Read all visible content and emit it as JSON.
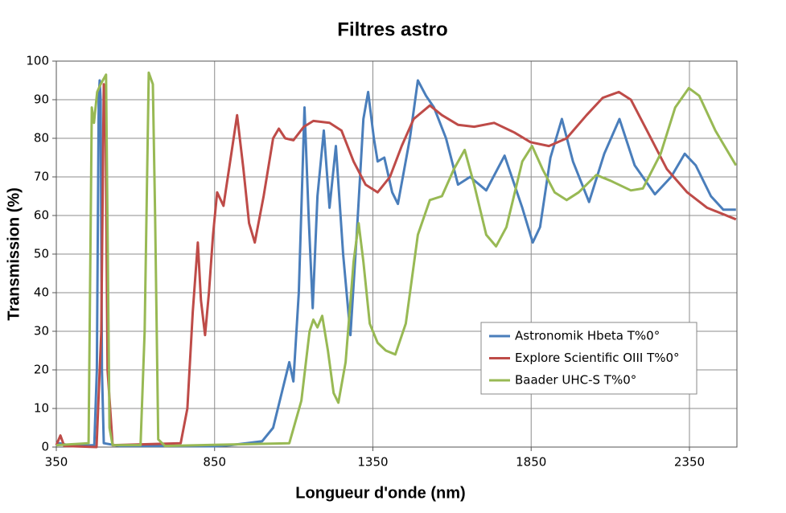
{
  "chart_data": {
    "type": "line",
    "title": "Filtres astro",
    "x_label": "Longueur d'onde (nm)",
    "y_label": "Transmission (%)",
    "xlim": [
      350,
      2500
    ],
    "ylim": [
      0,
      100
    ],
    "xticks": [
      350,
      850,
      1350,
      1850,
      2350
    ],
    "yticks": [
      0,
      10,
      20,
      30,
      40,
      50,
      60,
      70,
      80,
      90,
      100
    ],
    "grid": true,
    "legend": "lower right",
    "series": [
      {
        "name": "Astronomik Hbeta T%0°",
        "color": "#4a7ebb",
        "x": [
          350,
          360,
          400,
          470,
          478,
          484,
          487,
          490,
          494,
          500,
          550,
          700,
          850,
          900,
          950,
          1000,
          1035,
          1086,
          1099,
          1116,
          1134,
          1147,
          1160,
          1175,
          1195,
          1213,
          1233,
          1256,
          1279,
          1299,
          1320,
          1335,
          1353,
          1365,
          1386,
          1411,
          1429,
          1467,
          1492,
          1518,
          1543,
          1581,
          1619,
          1657,
          1708,
          1766,
          1822,
          1855,
          1878,
          1911,
          1947,
          1982,
          2033,
          2081,
          2129,
          2177,
          2241,
          2292,
          2335,
          2370,
          2418,
          2457,
          2497
        ],
        "values": [
          0.5,
          1,
          0.3,
          0.5,
          20,
          90,
          95,
          90,
          20,
          1,
          0.3,
          0.3,
          0.2,
          0.5,
          1,
          1.5,
          5,
          22,
          17,
          40,
          88,
          60,
          36,
          65,
          82,
          62,
          78,
          50,
          29,
          55,
          85,
          92,
          80,
          74,
          75,
          66,
          63,
          80,
          95,
          91,
          88,
          80,
          68,
          70,
          66.5,
          75.5,
          62,
          53,
          57,
          75,
          85,
          74,
          63.5,
          76,
          85,
          73,
          65.5,
          70,
          76,
          73,
          65,
          61.5,
          61.5
        ]
      },
      {
        "name": "Explore Scientific OIII T%0°",
        "color": "#be4b48",
        "x": [
          350,
          363,
          375,
          477,
          492,
          500,
          505,
          512,
          528,
          743,
          764,
          781,
          797,
          807,
          820,
          832,
          845,
          858,
          878,
          901,
          921,
          941,
          959,
          977,
          1005,
          1035,
          1053,
          1073,
          1099,
          1132,
          1162,
          1213,
          1251,
          1289,
          1327,
          1365,
          1404,
          1441,
          1479,
          1530,
          1568,
          1619,
          1670,
          1733,
          1797,
          1848,
          1906,
          1962,
          2025,
          2076,
          2127,
          2165,
          2216,
          2279,
          2343,
          2406,
          2497
        ],
        "values": [
          0.5,
          3,
          0.3,
          0,
          30,
          94,
          90,
          20,
          0.5,
          1,
          10,
          35,
          53,
          38,
          29,
          40,
          55,
          66,
          62.5,
          75,
          86,
          72,
          58,
          53,
          65,
          80,
          82.5,
          80,
          79.5,
          83,
          84.5,
          84,
          82,
          74,
          68,
          66,
          70,
          78,
          85,
          88.5,
          86,
          83.5,
          83,
          84,
          81.5,
          79,
          78,
          80,
          86,
          90.5,
          92,
          90,
          82,
          72,
          66,
          62,
          59
        ]
      },
      {
        "name": "Baader UHC-S T%0°",
        "color": "#98b954",
        "x": [
          350,
          452,
          462,
          469,
          479,
          490,
          507,
          518,
          528,
          616,
          629,
          642,
          655,
          662,
          672,
          693,
          1086,
          1124,
          1150,
          1162,
          1175,
          1190,
          1208,
          1226,
          1241,
          1264,
          1289,
          1305,
          1320,
          1340,
          1365,
          1391,
          1421,
          1454,
          1492,
          1530,
          1568,
          1606,
          1640,
          1670,
          1708,
          1739,
          1772,
          1822,
          1853,
          1886,
          1924,
          1962,
          2000,
          2056,
          2101,
          2165,
          2203,
          2259,
          2305,
          2348,
          2381,
          2432,
          2497
        ],
        "values": [
          0.5,
          1,
          88,
          84,
          92,
          94,
          96.5,
          5,
          0.5,
          0.5,
          30,
          97,
          94,
          60,
          2,
          0.3,
          1,
          12,
          30,
          33,
          31,
          34,
          25,
          14,
          11.5,
          22,
          48,
          58,
          48,
          32,
          27,
          25,
          24,
          32,
          55,
          64,
          65,
          72,
          77,
          68,
          55,
          52,
          57,
          74,
          78,
          72,
          66,
          64,
          66,
          70.5,
          69,
          66.5,
          67,
          76,
          88,
          93,
          91,
          82,
          73
        ]
      }
    ]
  }
}
